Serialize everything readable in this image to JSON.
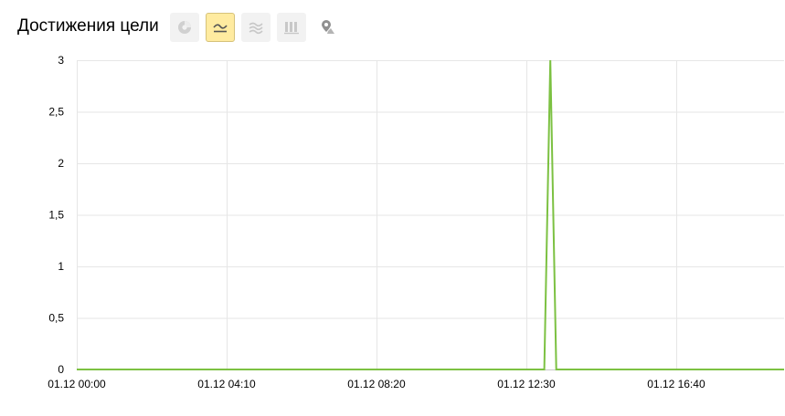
{
  "header": {
    "title": "Достижения цели"
  },
  "toolbar": {
    "buttons": [
      {
        "icon": "pie-chart-icon",
        "active": false
      },
      {
        "icon": "line-chart-icon",
        "active": true
      },
      {
        "icon": "area-chart-icon",
        "active": false
      },
      {
        "icon": "bar-chart-icon",
        "active": false
      },
      {
        "icon": "map-pin-icon",
        "active": false
      }
    ]
  },
  "chart_data": {
    "type": "line",
    "x_tick_labels": [
      "01.12 00:00",
      "01.12 04:10",
      "01.12 08:20",
      "01.12 12:30",
      "01.12 16:40"
    ],
    "x_tick_minutes": [
      0,
      250,
      500,
      750,
      1000
    ],
    "xlim_minutes": [
      0,
      1180
    ],
    "y_ticks": [
      0,
      0.5,
      1,
      1.5,
      2,
      2.5,
      3
    ],
    "y_tick_labels": [
      "0",
      "0,5",
      "1",
      "1,5",
      "2",
      "2,5",
      "3"
    ],
    "ylim": [
      0,
      3
    ],
    "grid": true,
    "series": [
      {
        "color": "#7cc142",
        "points": [
          {
            "x": 0,
            "y": 0
          },
          {
            "x": 780,
            "y": 0
          },
          {
            "x": 790,
            "y": 3
          },
          {
            "x": 800,
            "y": 0
          },
          {
            "x": 1180,
            "y": 0
          }
        ]
      }
    ]
  }
}
